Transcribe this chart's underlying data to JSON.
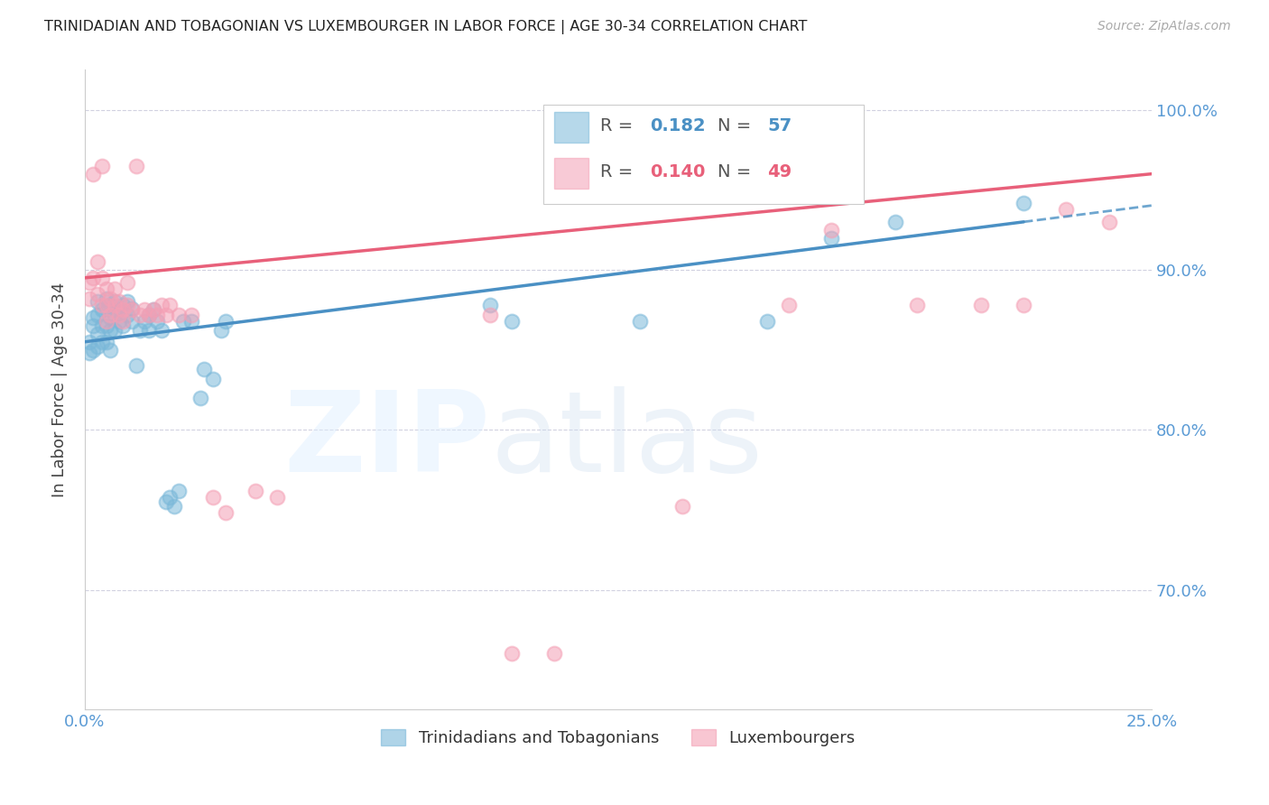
{
  "title": "TRINIDADIAN AND TOBAGONIAN VS LUXEMBOURGER IN LABOR FORCE | AGE 30-34 CORRELATION CHART",
  "source": "Source: ZipAtlas.com",
  "ylabel": "In Labor Force | Age 30-34",
  "xlim": [
    0.0,
    0.25
  ],
  "ylim": [
    0.625,
    1.025
  ],
  "xticks": [
    0.0,
    0.05,
    0.1,
    0.15,
    0.2,
    0.25
  ],
  "xtick_labels": [
    "0.0%",
    "",
    "",
    "",
    "",
    "25.0%"
  ],
  "yticks": [
    0.7,
    0.8,
    0.9,
    1.0
  ],
  "ytick_labels": [
    "70.0%",
    "80.0%",
    "90.0%",
    "100.0%"
  ],
  "blue_R": 0.182,
  "blue_N": 57,
  "pink_R": 0.14,
  "pink_N": 49,
  "blue_color": "#7ab8d9",
  "pink_color": "#f4a0b5",
  "blue_line_color": "#4a90c4",
  "pink_line_color": "#e8607a",
  "axis_color": "#5b9bd5",
  "grid_color": "#ccccdd",
  "background_color": "#ffffff",
  "blue_scatter_x": [
    0.001,
    0.001,
    0.002,
    0.002,
    0.002,
    0.003,
    0.003,
    0.003,
    0.003,
    0.004,
    0.004,
    0.004,
    0.005,
    0.005,
    0.005,
    0.005,
    0.006,
    0.006,
    0.006,
    0.006,
    0.007,
    0.007,
    0.007,
    0.008,
    0.008,
    0.009,
    0.009,
    0.01,
    0.01,
    0.011,
    0.011,
    0.012,
    0.013,
    0.014,
    0.015,
    0.015,
    0.016,
    0.017,
    0.018,
    0.019,
    0.02,
    0.021,
    0.022,
    0.023,
    0.025,
    0.027,
    0.028,
    0.03,
    0.032,
    0.033,
    0.095,
    0.1,
    0.13,
    0.16,
    0.175,
    0.19,
    0.22
  ],
  "blue_scatter_y": [
    0.855,
    0.848,
    0.87,
    0.865,
    0.85,
    0.88,
    0.872,
    0.86,
    0.852,
    0.875,
    0.865,
    0.855,
    0.882,
    0.875,
    0.865,
    0.855,
    0.878,
    0.87,
    0.862,
    0.85,
    0.88,
    0.872,
    0.862,
    0.875,
    0.868,
    0.878,
    0.865,
    0.88,
    0.872,
    0.876,
    0.868,
    0.84,
    0.862,
    0.868,
    0.872,
    0.862,
    0.875,
    0.868,
    0.862,
    0.755,
    0.758,
    0.752,
    0.762,
    0.868,
    0.868,
    0.82,
    0.838,
    0.832,
    0.862,
    0.868,
    0.878,
    0.868,
    0.868,
    0.868,
    0.92,
    0.93,
    0.942
  ],
  "pink_scatter_x": [
    0.001,
    0.001,
    0.002,
    0.002,
    0.003,
    0.003,
    0.004,
    0.004,
    0.004,
    0.005,
    0.005,
    0.005,
    0.006,
    0.006,
    0.007,
    0.007,
    0.008,
    0.008,
    0.009,
    0.009,
    0.01,
    0.01,
    0.011,
    0.012,
    0.013,
    0.014,
    0.015,
    0.016,
    0.017,
    0.018,
    0.019,
    0.02,
    0.022,
    0.025,
    0.03,
    0.033,
    0.04,
    0.045,
    0.095,
    0.1,
    0.11,
    0.14,
    0.165,
    0.175,
    0.195,
    0.21,
    0.22,
    0.23,
    0.24
  ],
  "pink_scatter_y": [
    0.892,
    0.882,
    0.96,
    0.895,
    0.905,
    0.885,
    0.895,
    0.878,
    0.965,
    0.888,
    0.878,
    0.868,
    0.882,
    0.872,
    0.888,
    0.878,
    0.88,
    0.872,
    0.875,
    0.868,
    0.878,
    0.892,
    0.875,
    0.965,
    0.872,
    0.875,
    0.872,
    0.875,
    0.872,
    0.878,
    0.872,
    0.878,
    0.872,
    0.872,
    0.758,
    0.748,
    0.762,
    0.758,
    0.872,
    0.66,
    0.66,
    0.752,
    0.878,
    0.925,
    0.878,
    0.878,
    0.878,
    0.938,
    0.93
  ],
  "blue_trend_x0": 0.0,
  "blue_trend_y0": 0.855,
  "blue_trend_x1": 0.22,
  "blue_trend_y1": 0.93,
  "blue_trend_xdash0": 0.22,
  "blue_trend_xdash1": 0.25,
  "pink_trend_x0": 0.0,
  "pink_trend_y0": 0.895,
  "pink_trend_x1": 0.25,
  "pink_trend_y1": 0.96,
  "legend_labels": [
    "Trinidadians and Tobagonians",
    "Luxembourgers"
  ]
}
